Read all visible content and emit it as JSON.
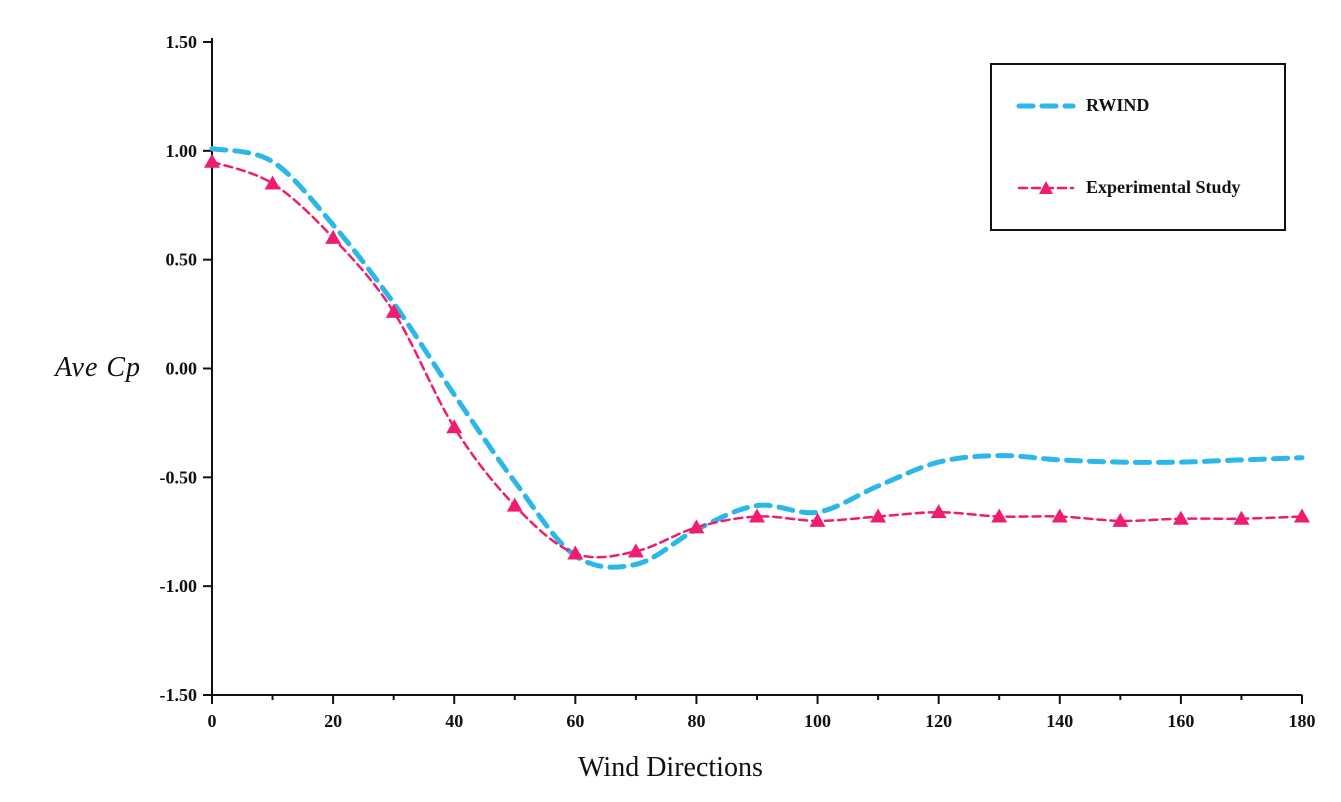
{
  "chart_data": {
    "type": "line",
    "title": "",
    "xlabel": "Wind Directions",
    "ylabel": "Ave Cp",
    "xlim": [
      0,
      180
    ],
    "ylim": [
      -1.5,
      1.5
    ],
    "grid": false,
    "legend_position": "top-right",
    "xticks": [
      0,
      20,
      40,
      60,
      80,
      100,
      120,
      140,
      160,
      180
    ],
    "xtick_labels": [
      "0",
      "20",
      "40",
      "60",
      "80",
      "100",
      "120",
      "140",
      "160",
      "180"
    ],
    "xminor_step": 10,
    "yticks": [
      1.5,
      1.0,
      0.5,
      0.0,
      -0.5,
      -1.0,
      -1.5
    ],
    "ytick_labels": [
      "1.50",
      "1.00",
      "0.50",
      "0.00",
      "-0.50",
      "-1.00",
      "-1.50"
    ],
    "x": [
      0,
      10,
      20,
      30,
      40,
      50,
      60,
      70,
      80,
      90,
      100,
      110,
      120,
      130,
      140,
      150,
      160,
      170,
      180
    ],
    "series": [
      {
        "name": "RWIND",
        "color": "#2cb7ea",
        "marker": "none",
        "stroke_width": 5,
        "dash": "14 9",
        "values": [
          1.01,
          0.95,
          0.66,
          0.3,
          -0.12,
          -0.52,
          -0.86,
          -0.9,
          -0.74,
          -0.63,
          -0.66,
          -0.54,
          -0.43,
          -0.4,
          -0.42,
          -0.43,
          -0.43,
          -0.42,
          -0.41
        ]
      },
      {
        "name": "Experimental Study",
        "color": "#ee1d70",
        "marker": "triangle",
        "stroke_width": 2.5,
        "dash": "8 5",
        "values": [
          0.95,
          0.85,
          0.6,
          0.26,
          -0.27,
          -0.63,
          -0.85,
          -0.84,
          -0.73,
          -0.68,
          -0.7,
          -0.68,
          -0.66,
          -0.68,
          -0.68,
          -0.7,
          -0.69,
          -0.69,
          -0.68
        ]
      }
    ]
  }
}
